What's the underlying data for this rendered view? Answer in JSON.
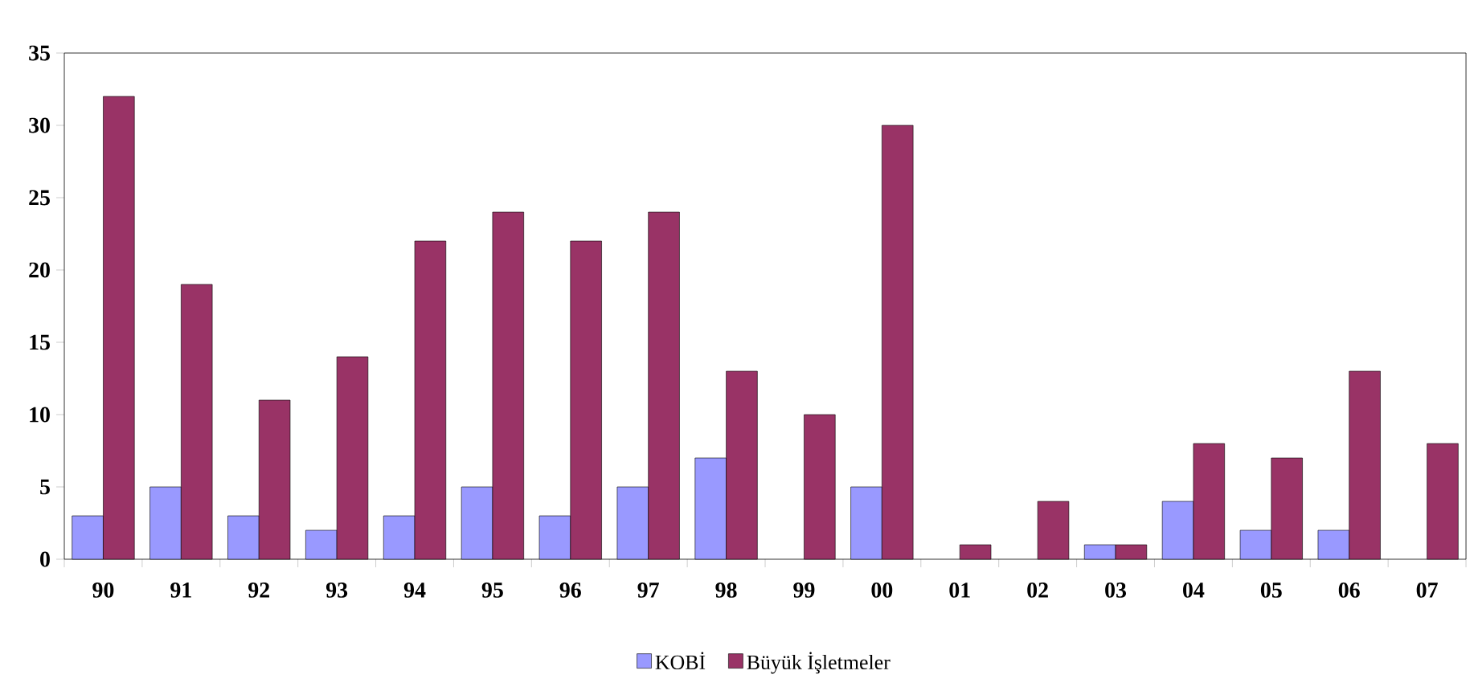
{
  "chart_data": {
    "type": "bar",
    "categories": [
      "90",
      "91",
      "92",
      "93",
      "94",
      "95",
      "96",
      "97",
      "98",
      "99",
      "00",
      "01",
      "02",
      "03",
      "04",
      "05",
      "06",
      "07"
    ],
    "series": [
      {
        "name": "KOBİ",
        "color": "#9999ff",
        "values": [
          3,
          5,
          3,
          2,
          3,
          5,
          3,
          5,
          7,
          null,
          5,
          null,
          null,
          1,
          4,
          2,
          2,
          null
        ]
      },
      {
        "name": "Büyük İşletmeler",
        "color": "#993366",
        "values": [
          32,
          19,
          11,
          14,
          22,
          24,
          22,
          24,
          13,
          10,
          30,
          1,
          4,
          1,
          8,
          7,
          13,
          8
        ]
      }
    ],
    "ylim": [
      0,
      35
    ],
    "yticks": [
      0,
      5,
      10,
      15,
      20,
      25,
      30,
      35
    ],
    "grid": false,
    "legend": "bottom"
  }
}
